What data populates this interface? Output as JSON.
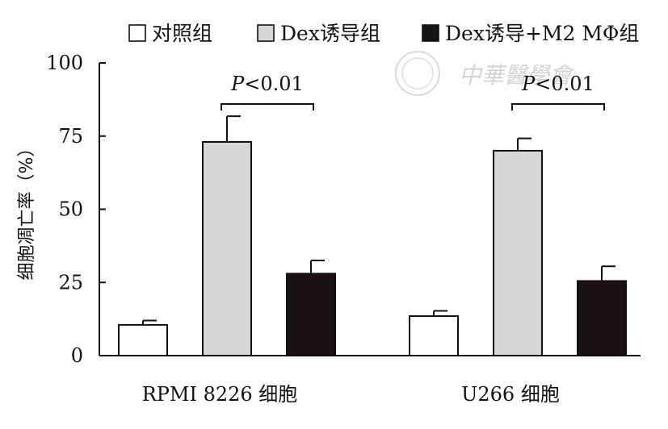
{
  "chart_data": {
    "type": "bar",
    "ylabel": "细胞凋亡率（%）",
    "ylim": [
      0,
      100
    ],
    "yticks": [
      0,
      25,
      50,
      75,
      100
    ],
    "categories": [
      "RPMI 8226 细胞",
      "U266 细胞"
    ],
    "series": [
      {
        "name": "对照组",
        "values": [
          10.5,
          13.5
        ],
        "errors": [
          1.5,
          1.8
        ],
        "color": "#ffffff"
      },
      {
        "name": "Dex诱导组",
        "values": [
          73.0,
          70.0
        ],
        "errors": [
          8.8,
          4.2
        ],
        "color": "#d6d6d6"
      },
      {
        "name": "Dex诱导+M2 MΦ组",
        "values": [
          28.0,
          25.5
        ],
        "errors": [
          4.5,
          5.0
        ],
        "color": "#1a1212"
      }
    ],
    "annotations": [
      {
        "text_italic": "P",
        "text": "<0.01",
        "group": 0,
        "from_series": 1,
        "to_series": 2
      },
      {
        "text_italic": "P",
        "text": "<0.01",
        "group": 1,
        "from_series": 1,
        "to_series": 2
      }
    ],
    "legend_position": "top",
    "grid": false
  },
  "watermark": {
    "text": "中華醫學會"
  }
}
